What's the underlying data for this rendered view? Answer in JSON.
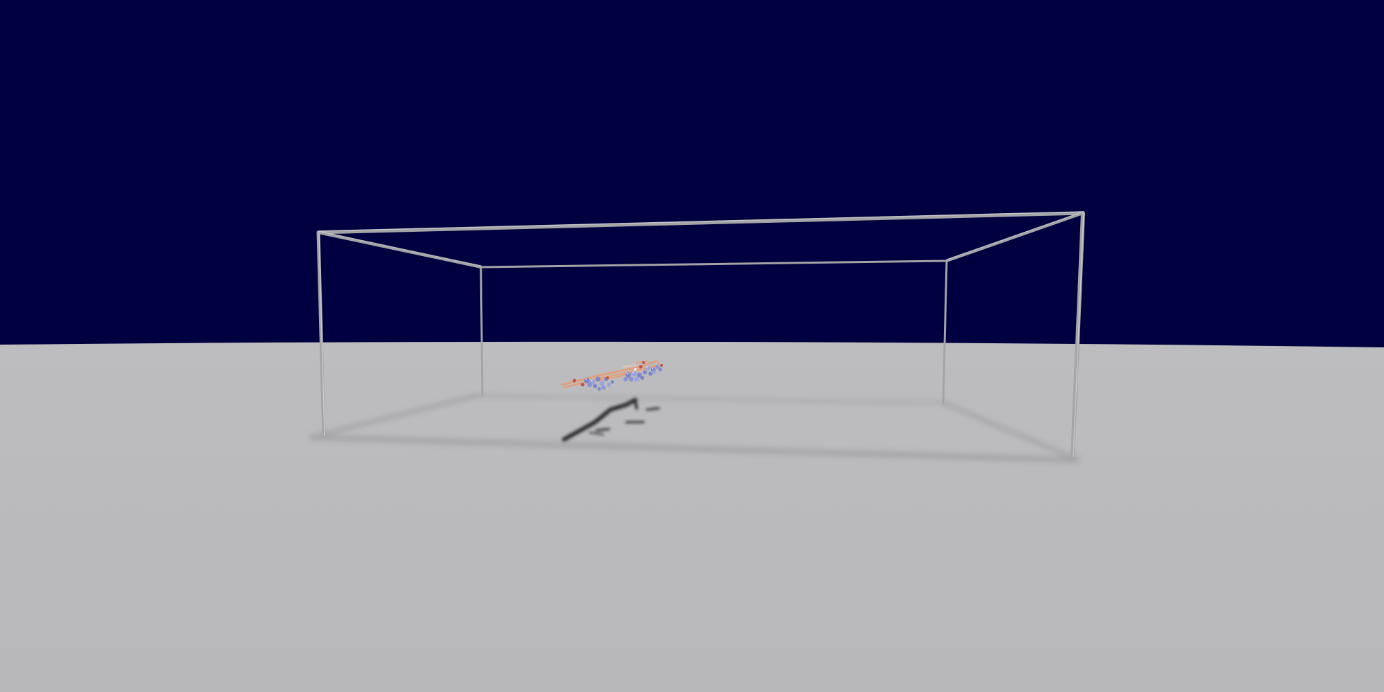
{
  "scene": {
    "sky_color": "#000040",
    "floor_color": "#b9b9bb",
    "frame_color": "#a9a9ab",
    "frame_highlight": "#d0d0d2",
    "shadow_color": "#2c2c2e",
    "molecule": {
      "bond_color": "#e0a07c",
      "atom_colors": [
        "#7c86c8",
        "#9aa4dc",
        "#c05050",
        "#f2e6e0"
      ]
    }
  }
}
